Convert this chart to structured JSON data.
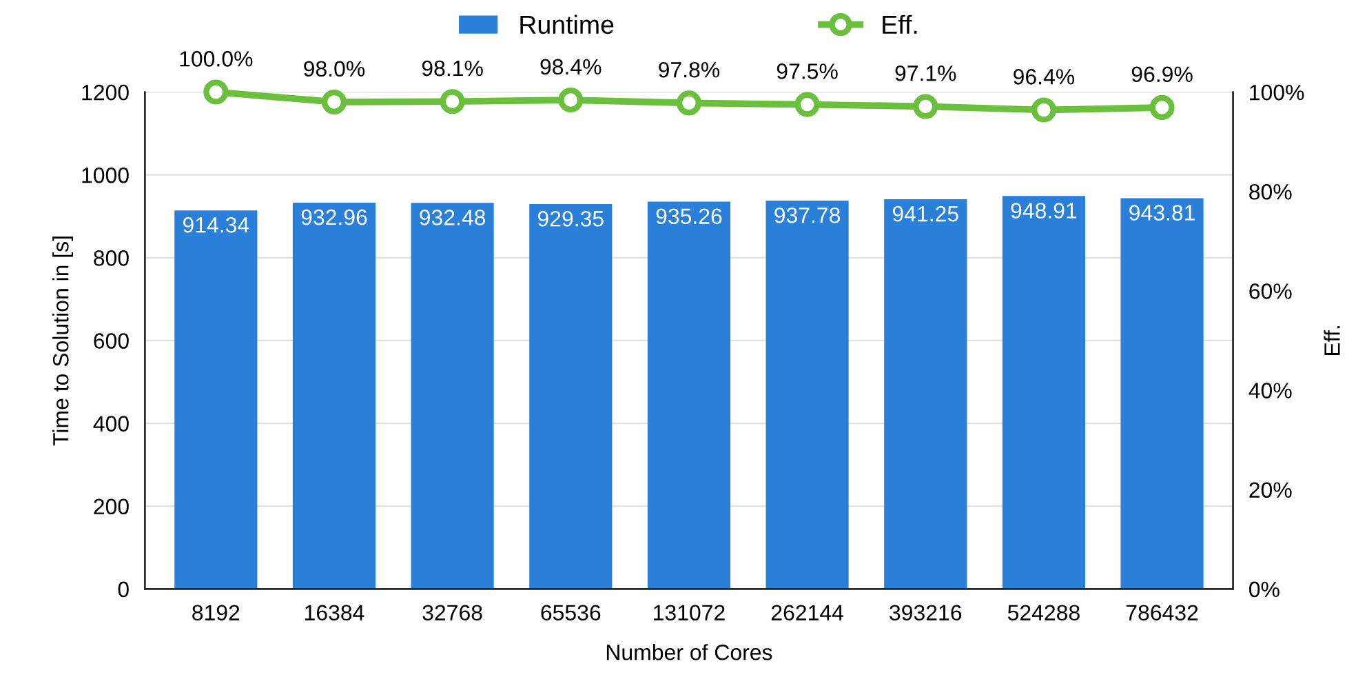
{
  "chart_data": {
    "type": "bar",
    "xlabel": "Number of Cores",
    "ylabel": "Time to Solution in [s]",
    "y2label": "Eff.",
    "categories": [
      "8192",
      "16384",
      "32768",
      "65536",
      "131072",
      "262144",
      "393216",
      "524288",
      "786432"
    ],
    "series": [
      {
        "name": "Runtime",
        "color": "#2a80d8",
        "values": [
          914.34,
          932.96,
          932.48,
          929.35,
          935.26,
          937.78,
          941.25,
          948.91,
          943.81
        ]
      },
      {
        "name": "Eff.",
        "type": "line",
        "axis": "y2",
        "color": "#6abf3c",
        "marker": "circle",
        "values": [
          100.0,
          98.0,
          98.1,
          98.4,
          97.8,
          97.5,
          97.1,
          96.4,
          96.9
        ],
        "value_labels": [
          "100.0%",
          "98.0%",
          "98.1%",
          "98.4%",
          "97.8%",
          "97.5%",
          "97.1%",
          "96.4%",
          "96.9%"
        ]
      }
    ],
    "data_labels": true,
    "ylim": [
      0,
      1200
    ],
    "yticks": [
      0,
      200,
      400,
      600,
      800,
      1000,
      1200
    ],
    "y2lim": [
      0,
      100
    ],
    "y2ticks": [
      {
        "value": 0,
        "label": "0%"
      },
      {
        "value": 20,
        "label": "20%"
      },
      {
        "value": 40,
        "label": "40%"
      },
      {
        "value": 60,
        "label": "60%"
      },
      {
        "value": 80,
        "label": "80%"
      },
      {
        "value": 100,
        "label": "100%"
      }
    ],
    "grid": "y",
    "legend": "top"
  }
}
